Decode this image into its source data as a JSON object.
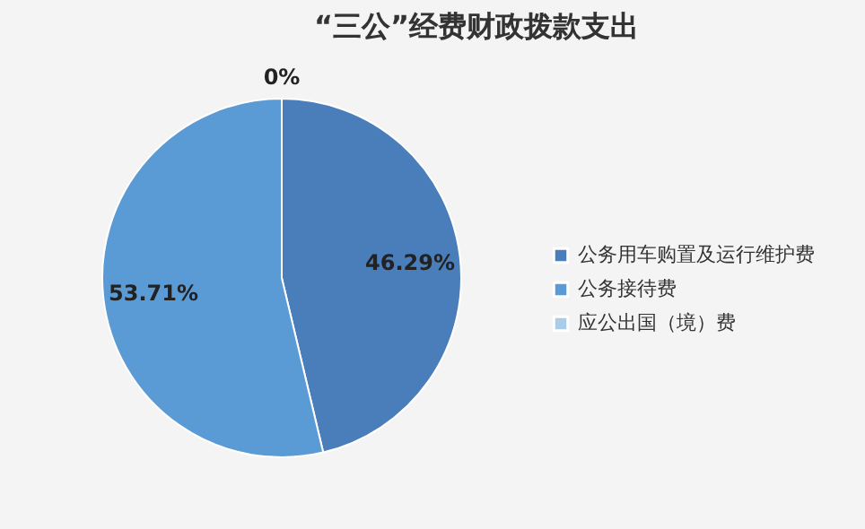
{
  "chart_data": {
    "type": "pie",
    "title": "“三公”经费财政拨款支出",
    "categories": [
      "公务用车购置及运行维护费",
      "公务接待费",
      "应公出国（境）费"
    ],
    "values": [
      46.29,
      53.71,
      0
    ],
    "colors": [
      "#4a7ebb",
      "#5b9bd5",
      "#a9cce8"
    ],
    "value_labels": [
      "46.29%",
      "53.71%",
      "0%"
    ],
    "legend": "right"
  }
}
